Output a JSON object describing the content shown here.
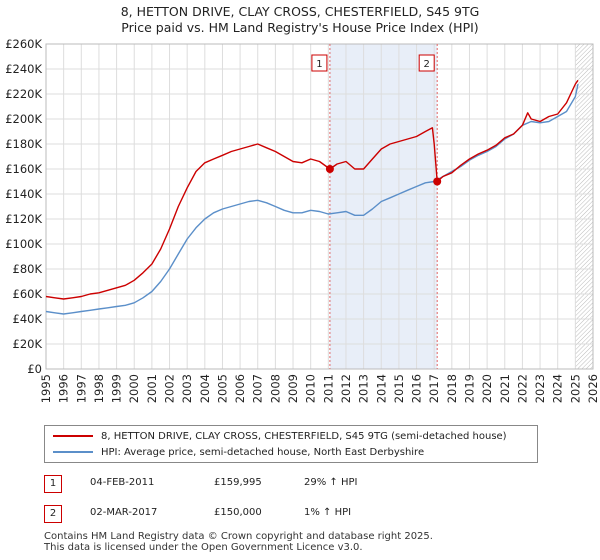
{
  "title_line1": "8, HETTON DRIVE, CLAY CROSS, CHESTERFIELD, S45 9TG",
  "title_line2": "Price paid vs. HM Land Registry's House Price Index (HPI)",
  "chart_data": {
    "type": "line",
    "title": "8, HETTON DRIVE, CLAY CROSS, CHESTERFIELD, S45 9TG",
    "subtitle": "Price paid vs. HM Land Registry's House Price Index (HPI)",
    "xlim": [
      1995,
      2026
    ],
    "ylim": [
      0,
      260000
    ],
    "x_ticks": [
      1995,
      1996,
      1997,
      1998,
      1999,
      2000,
      2001,
      2002,
      2003,
      2004,
      2005,
      2006,
      2007,
      2008,
      2009,
      2010,
      2011,
      2012,
      2013,
      2014,
      2015,
      2016,
      2017,
      2018,
      2019,
      2020,
      2021,
      2022,
      2023,
      2024,
      2025,
      2026
    ],
    "y_ticks": [
      0,
      20000,
      40000,
      60000,
      80000,
      100000,
      120000,
      140000,
      160000,
      180000,
      200000,
      220000,
      240000,
      260000
    ],
    "y_tick_labels": [
      "£0",
      "£20K",
      "£40K",
      "£60K",
      "£80K",
      "£100K",
      "£120K",
      "£140K",
      "£160K",
      "£180K",
      "£200K",
      "£220K",
      "£240K",
      "£260K"
    ],
    "grid": true,
    "future_shade_from": 2025.0,
    "series": [
      {
        "name": "8, HETTON DRIVE, CLAY CROSS, CHESTERFIELD, S45 9TG (semi-detached house)",
        "color": "#cc0000",
        "x": [
          1995.0,
          1995.5,
          1996.0,
          1996.5,
          1997.0,
          1997.5,
          1998.0,
          1998.5,
          1999.0,
          1999.5,
          2000.0,
          2000.5,
          2001.0,
          2001.5,
          2002.0,
          2002.5,
          2003.0,
          2003.5,
          2004.0,
          2004.5,
          2005.0,
          2005.5,
          2006.0,
          2006.5,
          2007.0,
          2007.5,
          2008.0,
          2008.5,
          2009.0,
          2009.5,
          2010.0,
          2010.5,
          2011.09,
          2011.5,
          2012.0,
          2012.5,
          2013.0,
          2013.5,
          2014.0,
          2014.5,
          2015.0,
          2015.5,
          2016.0,
          2016.5,
          2016.9,
          2017.0,
          2017.17,
          2017.5,
          2018.0,
          2018.5,
          2019.0,
          2019.5,
          2020.0,
          2020.5,
          2021.0,
          2021.5,
          2022.0,
          2022.3,
          2022.5,
          2023.0,
          2023.5,
          2024.0,
          2024.5,
          2025.0,
          2025.15
        ],
        "values": [
          58000,
          57000,
          56000,
          57000,
          58000,
          60000,
          61000,
          63000,
          65000,
          67000,
          71000,
          77000,
          84000,
          96000,
          112000,
          130000,
          145000,
          158000,
          165000,
          168000,
          171000,
          174000,
          176000,
          178000,
          180000,
          177000,
          174000,
          170000,
          166000,
          165000,
          168000,
          166000,
          159995,
          164000,
          166000,
          160000,
          160000,
          168000,
          176000,
          180000,
          182000,
          184000,
          186000,
          190000,
          193000,
          180000,
          150000,
          154000,
          157000,
          163000,
          168000,
          172000,
          175000,
          179000,
          185000,
          188000,
          195000,
          205000,
          200000,
          198000,
          202000,
          204000,
          213000,
          228000,
          231000
        ]
      },
      {
        "name": "HPI: Average price, semi-detached house, North East Derbyshire",
        "color": "#5b8fc9",
        "x": [
          1995.0,
          1995.5,
          1996.0,
          1996.5,
          1997.0,
          1997.5,
          1998.0,
          1998.5,
          1999.0,
          1999.5,
          2000.0,
          2000.5,
          2001.0,
          2001.5,
          2002.0,
          2002.5,
          2003.0,
          2003.5,
          2004.0,
          2004.5,
          2005.0,
          2005.5,
          2006.0,
          2006.5,
          2007.0,
          2007.5,
          2008.0,
          2008.5,
          2009.0,
          2009.5,
          2010.0,
          2010.5,
          2011.0,
          2011.5,
          2012.0,
          2012.5,
          2013.0,
          2013.5,
          2014.0,
          2014.5,
          2015.0,
          2015.5,
          2016.0,
          2016.5,
          2017.0,
          2017.5,
          2018.0,
          2018.5,
          2019.0,
          2019.5,
          2020.0,
          2020.5,
          2021.0,
          2021.5,
          2022.0,
          2022.5,
          2023.0,
          2023.5,
          2024.0,
          2024.5,
          2025.0,
          2025.15
        ],
        "values": [
          46000,
          45000,
          44000,
          45000,
          46000,
          47000,
          48000,
          49000,
          50000,
          51000,
          53000,
          57000,
          62000,
          70000,
          80000,
          92000,
          104000,
          113000,
          120000,
          125000,
          128000,
          130000,
          132000,
          134000,
          135000,
          133000,
          130000,
          127000,
          125000,
          125000,
          127000,
          126000,
          124000,
          125000,
          126000,
          123000,
          123000,
          128000,
          134000,
          137000,
          140000,
          143000,
          146000,
          149000,
          150000,
          154000,
          158000,
          162000,
          167000,
          171000,
          174000,
          178000,
          184000,
          188000,
          195000,
          198000,
          197000,
          198000,
          202000,
          206000,
          218000,
          228000
        ]
      }
    ],
    "markers": [
      {
        "label": "1",
        "x": 2011.09,
        "y": 159995
      },
      {
        "label": "2",
        "x": 2017.17,
        "y": 150000
      }
    ]
  },
  "legend": {
    "red_label": "8, HETTON DRIVE, CLAY CROSS, CHESTERFIELD, S45 9TG (semi-detached house)",
    "blue_label": "HPI: Average price, semi-detached house, North East Derbyshire"
  },
  "transactions": [
    {
      "num": "1",
      "date": "04-FEB-2011",
      "price": "£159,995",
      "hpi": "29% ↑ HPI"
    },
    {
      "num": "2",
      "date": "02-MAR-2017",
      "price": "£150,000",
      "hpi": "1% ↑ HPI"
    }
  ],
  "footer": {
    "line1": "Contains HM Land Registry data © Crown copyright and database right 2025.",
    "line2": "This data is licensed under the Open Government Licence v3.0."
  }
}
